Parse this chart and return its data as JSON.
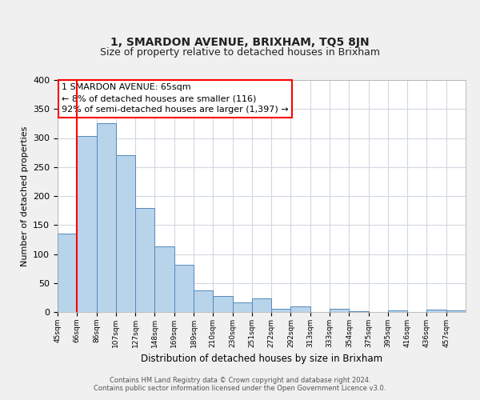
{
  "title": "1, SMARDON AVENUE, BRIXHAM, TQ5 8JN",
  "subtitle": "Size of property relative to detached houses in Brixham",
  "xlabel": "Distribution of detached houses by size in Brixham",
  "ylabel": "Number of detached properties",
  "categories": [
    "45sqm",
    "66sqm",
    "86sqm",
    "107sqm",
    "127sqm",
    "148sqm",
    "169sqm",
    "189sqm",
    "210sqm",
    "230sqm",
    "251sqm",
    "272sqm",
    "292sqm",
    "313sqm",
    "333sqm",
    "354sqm",
    "375sqm",
    "395sqm",
    "416sqm",
    "436sqm",
    "457sqm"
  ],
  "values": [
    135,
    303,
    325,
    270,
    180,
    113,
    82,
    37,
    27,
    17,
    24,
    5,
    10,
    0,
    5,
    1,
    0,
    3,
    0,
    4,
    3
  ],
  "bar_color": "#b8d4ea",
  "bar_edge_color": "#5588bb",
  "annotation_title": "1 SMARDON AVENUE: 65sqm",
  "annotation_line1": "← 8% of detached houses are smaller (116)",
  "annotation_line2": "92% of semi-detached houses are larger (1,397) →",
  "footnote1": "Contains HM Land Registry data © Crown copyright and database right 2024.",
  "footnote2": "Contains public sector information licensed under the Open Government Licence v3.0.",
  "ylim": [
    0,
    400
  ],
  "yticks": [
    0,
    50,
    100,
    150,
    200,
    250,
    300,
    350,
    400
  ],
  "red_line_x": 1.0,
  "background_color": "#f0f0f0",
  "plot_bg_color": "#ffffff",
  "grid_color": "#d0d8e0",
  "title_fontsize": 10,
  "subtitle_fontsize": 9
}
